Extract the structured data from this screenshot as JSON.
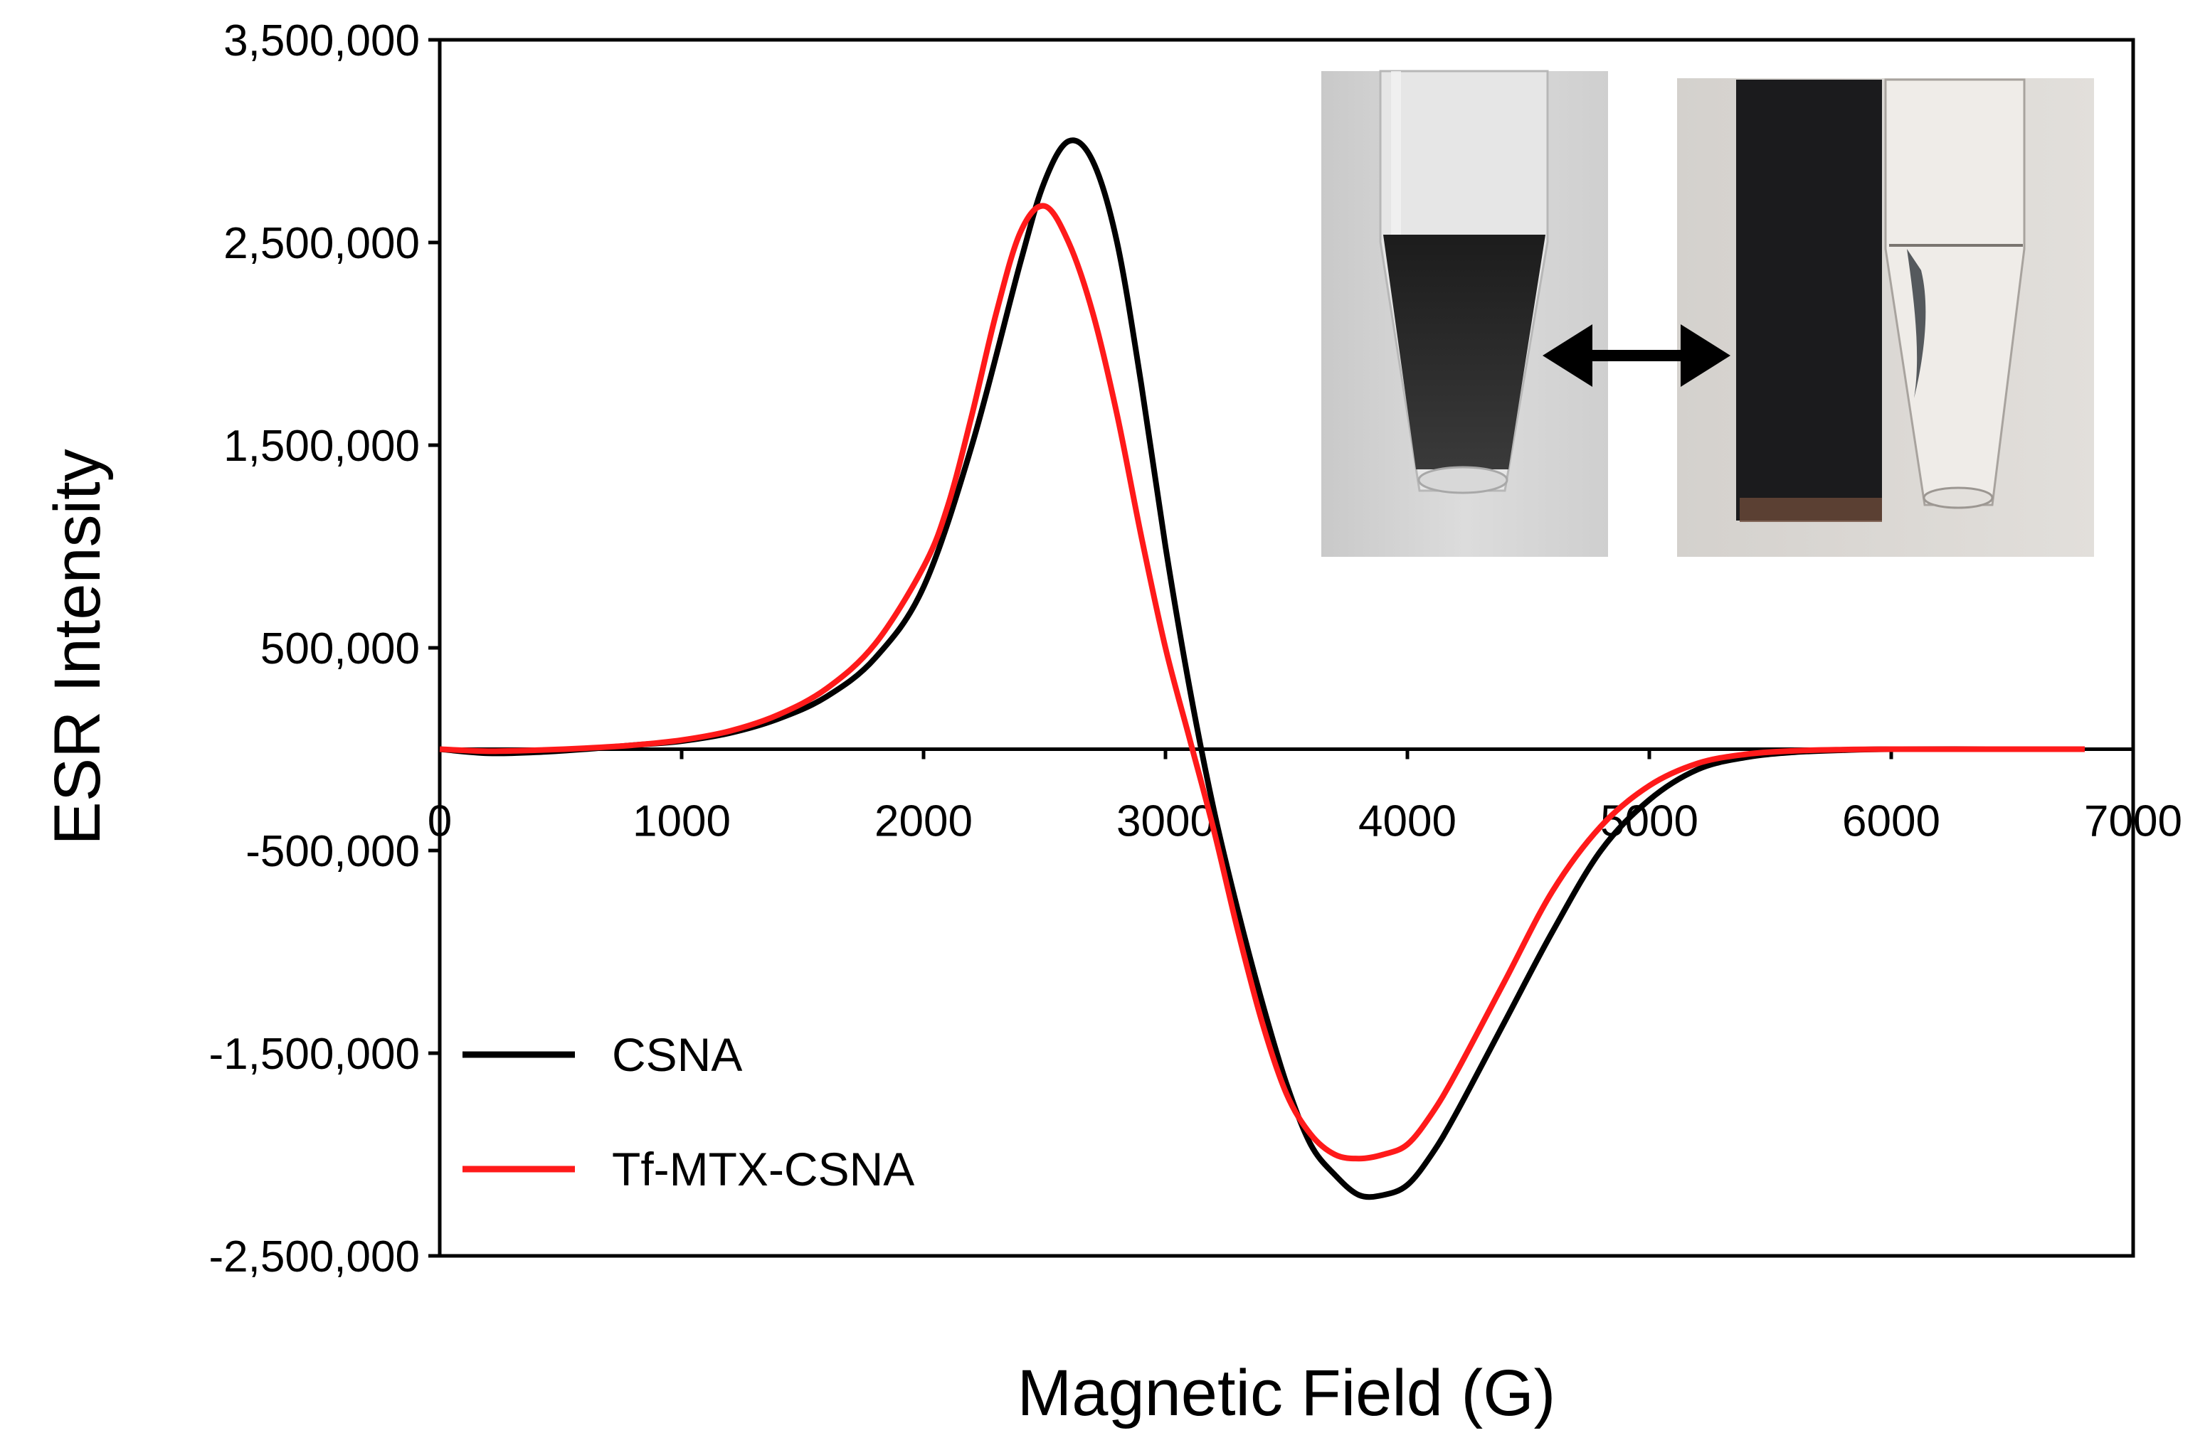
{
  "chart_data": {
    "type": "line",
    "title": "",
    "xlabel": "Magnetic Field (G)",
    "ylabel": "ESR Intensity",
    "xlim": [
      0,
      7000
    ],
    "ylim": [
      -2500000,
      3500000
    ],
    "xticks": [
      0,
      1000,
      2000,
      3000,
      4000,
      5000,
      6000,
      7000
    ],
    "xtick_labels": [
      "0",
      "1000",
      "2000",
      "3000",
      "4000",
      "5000",
      "6000",
      "7000"
    ],
    "yticks": [
      3500000,
      2500000,
      1500000,
      500000,
      -500000,
      -1500000,
      -2500000
    ],
    "ytick_labels": [
      "3,500,000",
      "2,500,000",
      "1,500,000",
      "500,000",
      "-500,000",
      "-1,500,000",
      "-2,500,000"
    ],
    "grid": false,
    "legend_position": "bottom-left",
    "series": [
      {
        "name": "CSNA",
        "color": "#000000",
        "x": [
          0,
          200,
          400,
          600,
          800,
          1000,
          1200,
          1400,
          1600,
          1800,
          2000,
          2200,
          2400,
          2500,
          2600,
          2700,
          2800,
          2900,
          3000,
          3100,
          3200,
          3300,
          3400,
          3500,
          3600,
          3700,
          3800,
          3900,
          4000,
          4100,
          4200,
          4400,
          4600,
          4800,
          5000,
          5200,
          5400,
          5600,
          5800,
          6000,
          6500,
          6800
        ],
        "y": [
          0,
          -20000,
          -15000,
          0,
          20000,
          40000,
          80000,
          150000,
          260000,
          450000,
          800000,
          1500000,
          2400000,
          2800000,
          3000000,
          2900000,
          2500000,
          1800000,
          1000000,
          300000,
          -300000,
          -800000,
          -1250000,
          -1650000,
          -1950000,
          -2100000,
          -2200000,
          -2200000,
          -2150000,
          -2000000,
          -1800000,
          -1350000,
          -900000,
          -500000,
          -250000,
          -100000,
          -40000,
          -15000,
          -5000,
          0,
          0,
          0
        ]
      },
      {
        "name": "Tf-MTX-CSNA",
        "color": "#ff1a1a",
        "x": [
          0,
          200,
          400,
          600,
          800,
          1000,
          1200,
          1400,
          1600,
          1800,
          2000,
          2100,
          2200,
          2300,
          2400,
          2500,
          2600,
          2700,
          2800,
          2900,
          3000,
          3100,
          3200,
          3300,
          3400,
          3500,
          3600,
          3700,
          3800,
          3900,
          4000,
          4100,
          4200,
          4400,
          4600,
          4800,
          5000,
          5200,
          5400,
          5600,
          5800,
          6000,
          6500,
          6800
        ],
        "y": [
          0,
          -10000,
          -5000,
          5000,
          20000,
          45000,
          90000,
          170000,
          300000,
          520000,
          900000,
          1200000,
          1650000,
          2150000,
          2550000,
          2680000,
          2500000,
          2150000,
          1650000,
          1050000,
          500000,
          50000,
          -400000,
          -900000,
          -1350000,
          -1700000,
          -1900000,
          -2000000,
          -2020000,
          -2000000,
          -1950000,
          -1800000,
          -1600000,
          -1150000,
          -700000,
          -380000,
          -180000,
          -70000,
          -25000,
          -8000,
          -2000,
          0,
          0,
          0
        ]
      }
    ],
    "inset": {
      "description_left": "tube",
      "description_right": "magnet"
    }
  }
}
